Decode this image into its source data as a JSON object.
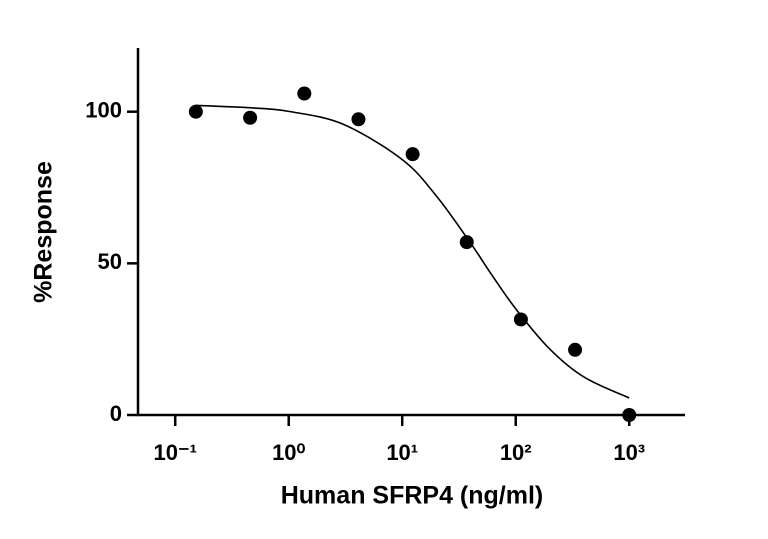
{
  "chart_data": {
    "type": "scatter",
    "x_label": "Human SFRP4 (ng/ml)",
    "y_label": "%Response",
    "x_scale": "log",
    "color": "#000000",
    "points": {
      "x": [
        0.152,
        0.457,
        1.372,
        4.115,
        12.35,
        37.04,
        111.1,
        333.3,
        1000
      ],
      "values": [
        100,
        98,
        106,
        97.5,
        86,
        57,
        31.5,
        21.5,
        0
      ]
    },
    "fit": {
      "x": [
        0.15,
        0.5,
        1,
        3,
        10,
        20,
        40,
        60,
        100,
        200,
        400,
        1000
      ],
      "values": [
        102.1,
        101.2,
        100.1,
        95.9,
        84.2,
        72.2,
        56.7,
        46.8,
        35.0,
        21.7,
        12.5,
        5.6
      ]
    },
    "xlim": [
      0.047,
      3100
    ],
    "xticks": [
      {
        "value": 0.1,
        "label": "10⁻¹"
      },
      {
        "value": 1,
        "label": "10⁰"
      },
      {
        "value": 10,
        "label": "10¹"
      },
      {
        "value": 100,
        "label": "10²"
      },
      {
        "value": 1000,
        "label": "10³"
      }
    ],
    "ylim": [
      0,
      121
    ],
    "yticks": [
      0,
      50,
      100
    ]
  }
}
